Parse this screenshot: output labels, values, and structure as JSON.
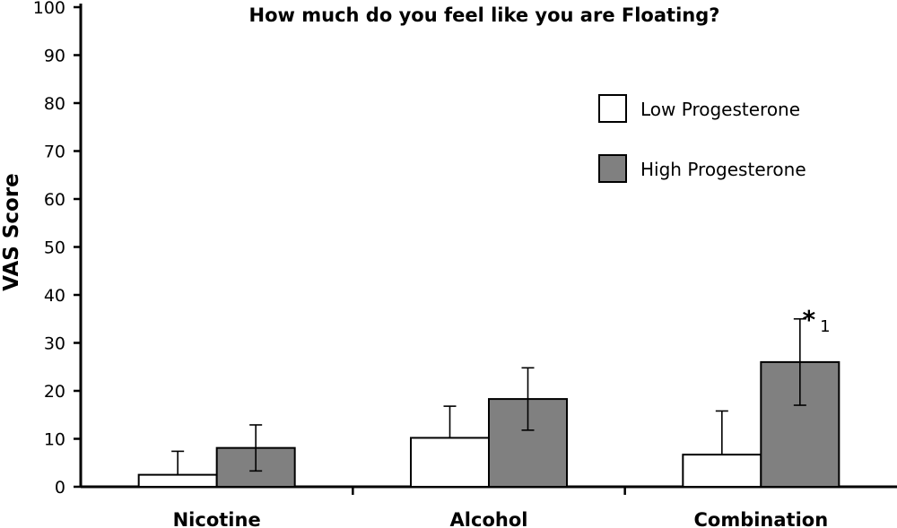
{
  "chart_data": {
    "type": "bar",
    "title": "How much do you feel like you are Floating?",
    "xlabel": "",
    "ylabel": "VAS Score",
    "ylim": [
      0,
      100
    ],
    "yticks": [
      0,
      10,
      20,
      30,
      40,
      50,
      60,
      70,
      80,
      90,
      100
    ],
    "categories": [
      "Nicotine",
      "Alcohol",
      "Combination"
    ],
    "series": [
      {
        "name": "Low Progesterone",
        "color": "#ffffff",
        "values": [
          2.5,
          10.2,
          6.7
        ],
        "error": [
          4.9,
          6.6,
          9.1
        ]
      },
      {
        "name": "High Progesterone",
        "color": "#808080",
        "values": [
          8.1,
          18.3,
          26.0
        ],
        "error": [
          4.8,
          6.5,
          9.0
        ]
      }
    ],
    "legend_position": "top-right",
    "annotations": [
      {
        "category": "Combination",
        "series": "High Progesterone",
        "mark": "*",
        "superscript": "1"
      }
    ]
  }
}
